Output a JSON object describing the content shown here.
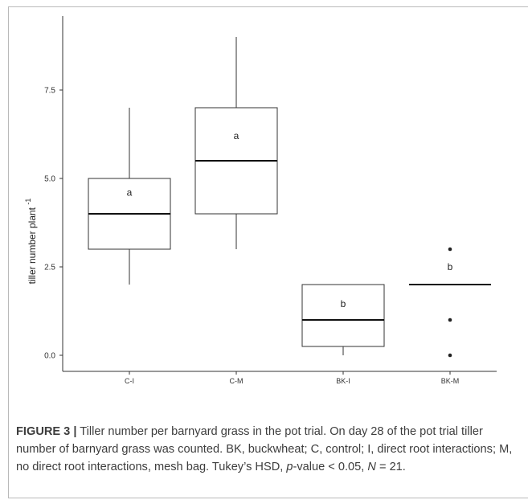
{
  "chart_data": {
    "type": "boxplot",
    "ylabel": "tiller number plant",
    "ylabel_superscript": "-1",
    "xlabel": "",
    "ylim": [
      -0.5,
      9.5
    ],
    "yticks": [
      "0.0",
      "2.5",
      "5.0",
      "7.5"
    ],
    "ytick_values": [
      0,
      2.5,
      5,
      7.5
    ],
    "grid": false,
    "categories": [
      "C-I",
      "C-M",
      "BK-I",
      "BK-M"
    ],
    "boxes": [
      {
        "category": "C-I",
        "min": 2,
        "q1": 3,
        "median": 4,
        "q3": 5,
        "max": 7,
        "outliers": [],
        "letter": "a",
        "letter_y": 4.6
      },
      {
        "category": "C-M",
        "min": 3,
        "q1": 4,
        "median": 5.5,
        "q3": 7,
        "max": 9,
        "outliers": [],
        "letter": "a",
        "letter_y": 6.2
      },
      {
        "category": "BK-I",
        "min": 0,
        "q1": 0.25,
        "median": 1,
        "q3": 2,
        "max": 2,
        "outliers": [],
        "letter": "b",
        "letter_y": 1.45
      },
      {
        "category": "BK-M",
        "min": 2,
        "q1": 2,
        "median": 2,
        "q3": 2,
        "max": 2,
        "outliers": [
          0,
          1,
          3
        ],
        "letter": "b",
        "letter_y": 2.5
      }
    ]
  },
  "caption": {
    "label": "FIGURE 3",
    "separator": "|",
    "text_1": " Tiller number per barnyard grass in the pot trial. On day 28 of the pot trial tiller number of barnyard grass was counted. BK, buckwheat; C, control; I, direct root interactions; M, no direct root interactions, mesh bag. Tukey’s HSD, ",
    "p_symbol": "p",
    "text_2": "-value < 0.05, ",
    "n_symbol": "N",
    "text_3": " = 21."
  }
}
